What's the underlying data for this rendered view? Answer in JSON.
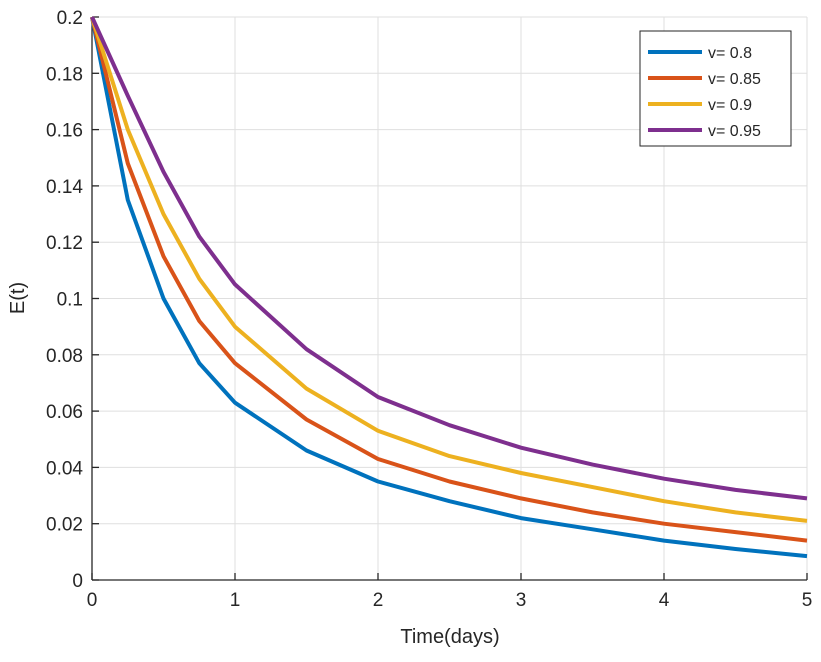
{
  "chart_data": {
    "type": "line",
    "title": "",
    "xlabel": "Time(days)",
    "ylabel": "E(t)",
    "xlim": [
      0,
      5
    ],
    "ylim": [
      0,
      0.2
    ],
    "xticks": [
      "0",
      "1",
      "2",
      "3",
      "4",
      "5"
    ],
    "yticks": [
      "0",
      "0.02",
      "0.04",
      "0.06",
      "0.08",
      "0.1",
      "0.12",
      "0.14",
      "0.16",
      "0.18",
      "0.2"
    ],
    "grid": true,
    "legend_position": "top-right",
    "x": [
      0,
      0.25,
      0.5,
      0.75,
      1,
      1.5,
      2,
      2.5,
      3,
      3.5,
      4,
      4.5,
      5
    ],
    "series": [
      {
        "name": "v= 0.8",
        "color": "#0072BD",
        "values": [
          0.2,
          0.135,
          0.1,
          0.077,
          0.063,
          0.046,
          0.035,
          0.028,
          0.022,
          0.018,
          0.014,
          0.011,
          0.0085
        ]
      },
      {
        "name": "v= 0.85",
        "color": "#D95319",
        "values": [
          0.2,
          0.148,
          0.115,
          0.092,
          0.077,
          0.057,
          0.043,
          0.035,
          0.029,
          0.024,
          0.02,
          0.017,
          0.014
        ]
      },
      {
        "name": "v= 0.9",
        "color": "#EDB120",
        "values": [
          0.2,
          0.16,
          0.13,
          0.107,
          0.09,
          0.068,
          0.053,
          0.044,
          0.038,
          0.033,
          0.028,
          0.024,
          0.021
        ]
      },
      {
        "name": "v= 0.95",
        "color": "#7E2F8E",
        "values": [
          0.2,
          0.172,
          0.145,
          0.122,
          0.105,
          0.082,
          0.065,
          0.055,
          0.047,
          0.041,
          0.036,
          0.032,
          0.029
        ]
      }
    ]
  }
}
